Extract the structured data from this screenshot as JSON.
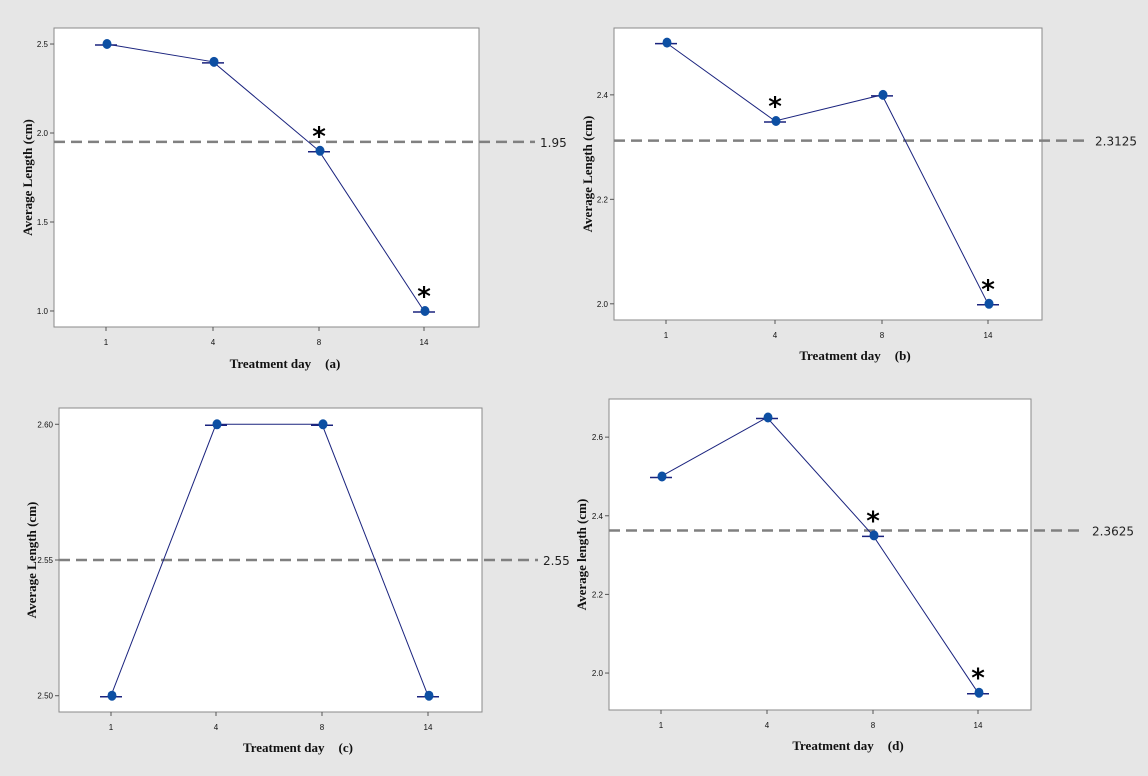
{
  "chart_data": [
    {
      "type": "line",
      "panel": "(a)",
      "xlabel": "Treatment day",
      "ylabel": "Average Length (cm)",
      "categories": [
        "1",
        "4",
        "8",
        "14"
      ],
      "values": [
        2.5,
        2.4,
        1.9,
        1.0
      ],
      "significant": [
        false,
        false,
        true,
        true
      ],
      "mean_line": 1.95,
      "mean_label": "1.95",
      "yticks": [
        1.0,
        1.5,
        2.0,
        2.5
      ],
      "ytick_labels": [
        "1.0",
        "1.5",
        "2.0",
        "2.5"
      ],
      "ylim": [
        0.91,
        2.59
      ],
      "grid": false
    },
    {
      "type": "line",
      "panel": "(b)",
      "xlabel": "Treatment day",
      "ylabel": "Average Length (cm)",
      "categories": [
        "1",
        "4",
        "8",
        "14"
      ],
      "values": [
        2.5,
        2.35,
        2.4,
        2.0
      ],
      "significant": [
        false,
        true,
        false,
        true
      ],
      "mean_line": 2.3125,
      "mean_label": "2.3125",
      "yticks": [
        2.0,
        2.2,
        2.4
      ],
      "ytick_labels": [
        "2.0",
        "2.2",
        "2.4"
      ],
      "ylim": [
        1.969,
        2.528
      ],
      "grid": false
    },
    {
      "type": "line",
      "panel": "(c)",
      "xlabel": "Treatment day",
      "ylabel": "Average Length (cm)",
      "categories": [
        "1",
        "4",
        "8",
        "14"
      ],
      "values": [
        2.5,
        2.6,
        2.6,
        2.5
      ],
      "significant": [
        false,
        false,
        false,
        false
      ],
      "mean_line": 2.55,
      "mean_label": "2.55",
      "yticks": [
        2.5,
        2.55,
        2.6
      ],
      "ytick_labels": [
        "2.50",
        "2.55",
        "2.60"
      ],
      "ylim": [
        2.494,
        2.606
      ],
      "grid": false
    },
    {
      "type": "line",
      "panel": "(d)",
      "xlabel": "Treatment day",
      "ylabel": "Average length (cm)",
      "categories": [
        "1",
        "4",
        "8",
        "14"
      ],
      "values": [
        2.5,
        2.65,
        2.35,
        1.95
      ],
      "significant": [
        false,
        false,
        true,
        true
      ],
      "mean_line": 2.3625,
      "mean_label": "2.3625",
      "yticks": [
        2.0,
        2.2,
        2.4,
        2.6
      ],
      "ytick_labels": [
        "2.0",
        "2.2",
        "2.4",
        "2.6"
      ],
      "ylim": [
        1.906,
        2.697
      ],
      "grid": false
    }
  ],
  "colors": {
    "line": "#1a237e",
    "marker": "#0d4fa3",
    "mean_line": "#808080",
    "plot_background": "#ffffff",
    "figure_background": "#e6e6e6",
    "frame": "#8a8a8a"
  },
  "marker_symbol": "*"
}
